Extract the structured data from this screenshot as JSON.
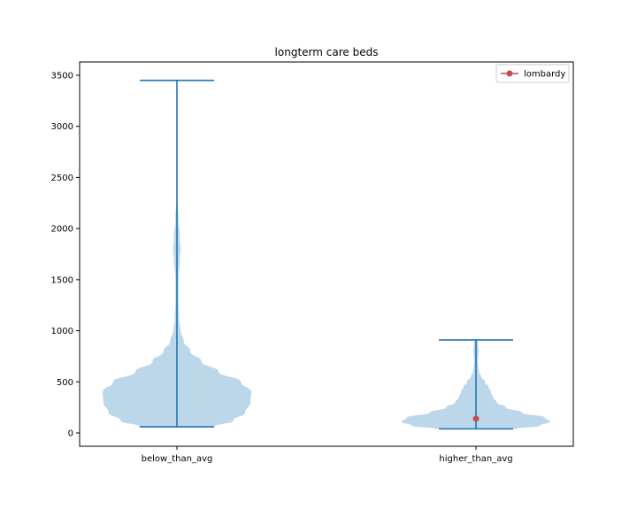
{
  "chart_data": {
    "type": "violin",
    "title": "longterm care beds",
    "xlabel": "",
    "ylabel": "",
    "ylim": [
      -130,
      3630
    ],
    "yticks": [
      0,
      500,
      1000,
      1500,
      2000,
      2500,
      3000,
      3500
    ],
    "grid": false,
    "legend_position": "top-right",
    "colors": {
      "violin_fill": "#bcd6ea",
      "violin_line": "#1f77b4",
      "highlight": "#c44e52"
    },
    "categories": [
      "below_than_avg",
      "higher_than_avg"
    ],
    "violins": [
      {
        "category": "below_than_avg",
        "min": 60,
        "max": 3450,
        "density_profile": [
          [
            60,
            0.5
          ],
          [
            120,
            0.76
          ],
          [
            200,
            0.92
          ],
          [
            300,
            0.99
          ],
          [
            400,
            1.0
          ],
          [
            500,
            0.86
          ],
          [
            600,
            0.56
          ],
          [
            700,
            0.33
          ],
          [
            800,
            0.18
          ],
          [
            900,
            0.09
          ],
          [
            1000,
            0.05
          ],
          [
            1100,
            0.03
          ],
          [
            1300,
            0.02
          ],
          [
            1500,
            0.02
          ],
          [
            1700,
            0.04
          ],
          [
            1800,
            0.05
          ],
          [
            1900,
            0.04
          ],
          [
            2100,
            0.02
          ],
          [
            2300,
            0.005
          ],
          [
            2500,
            0.001
          ],
          [
            3450,
            0.0
          ]
        ]
      },
      {
        "category": "higher_than_avg",
        "min": 40,
        "max": 910,
        "density_profile": [
          [
            40,
            0.55
          ],
          [
            70,
            0.86
          ],
          [
            110,
            1.0
          ],
          [
            150,
            0.93
          ],
          [
            200,
            0.62
          ],
          [
            250,
            0.4
          ],
          [
            300,
            0.28
          ],
          [
            350,
            0.23
          ],
          [
            400,
            0.2
          ],
          [
            450,
            0.17
          ],
          [
            500,
            0.12
          ],
          [
            550,
            0.07
          ],
          [
            600,
            0.04
          ],
          [
            650,
            0.03
          ],
          [
            700,
            0.025
          ],
          [
            750,
            0.03
          ],
          [
            800,
            0.035
          ],
          [
            860,
            0.03
          ],
          [
            910,
            0.02
          ]
        ]
      }
    ],
    "highlight": {
      "name": "lombardy",
      "category": "higher_than_avg",
      "value": 140
    }
  }
}
